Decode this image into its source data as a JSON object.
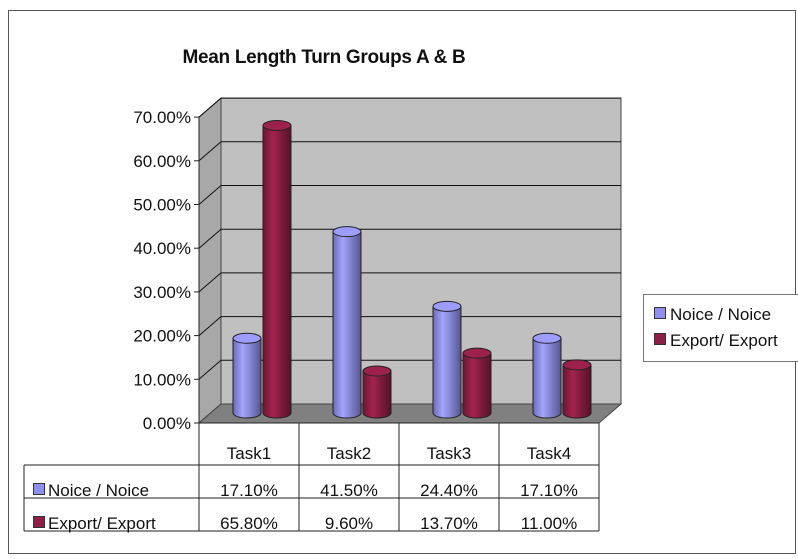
{
  "chart_data": {
    "type": "bar",
    "title": "Mean Length Turn Groups A & B",
    "categories": [
      "Task1",
      "Task2",
      "Task3",
      "Task4"
    ],
    "series": [
      {
        "name": "Noice / Noice",
        "values": [
          17.1,
          41.5,
          24.4,
          17.1
        ],
        "labels": [
          "17.10%",
          "41.50%",
          "24.40%",
          "17.10%"
        ],
        "color": "#8f8ff0"
      },
      {
        "name": "Export/ Export",
        "values": [
          65.8,
          9.6,
          13.7,
          11.0
        ],
        "labels": [
          "65.80%",
          "9.60%",
          "13.70%",
          "11.00%"
        ],
        "color": "#8e1e45"
      }
    ],
    "ylim": [
      0,
      70
    ],
    "yticks": [
      "0.00%",
      "10.00%",
      "20.00%",
      "30.00%",
      "40.00%",
      "50.00%",
      "60.00%",
      "70.00%"
    ],
    "xlabel": "",
    "ylabel": "",
    "grid": true,
    "legend_position": "right",
    "data_table": true,
    "wall_color": "#c0c0c0",
    "floor_color": "#808080"
  }
}
